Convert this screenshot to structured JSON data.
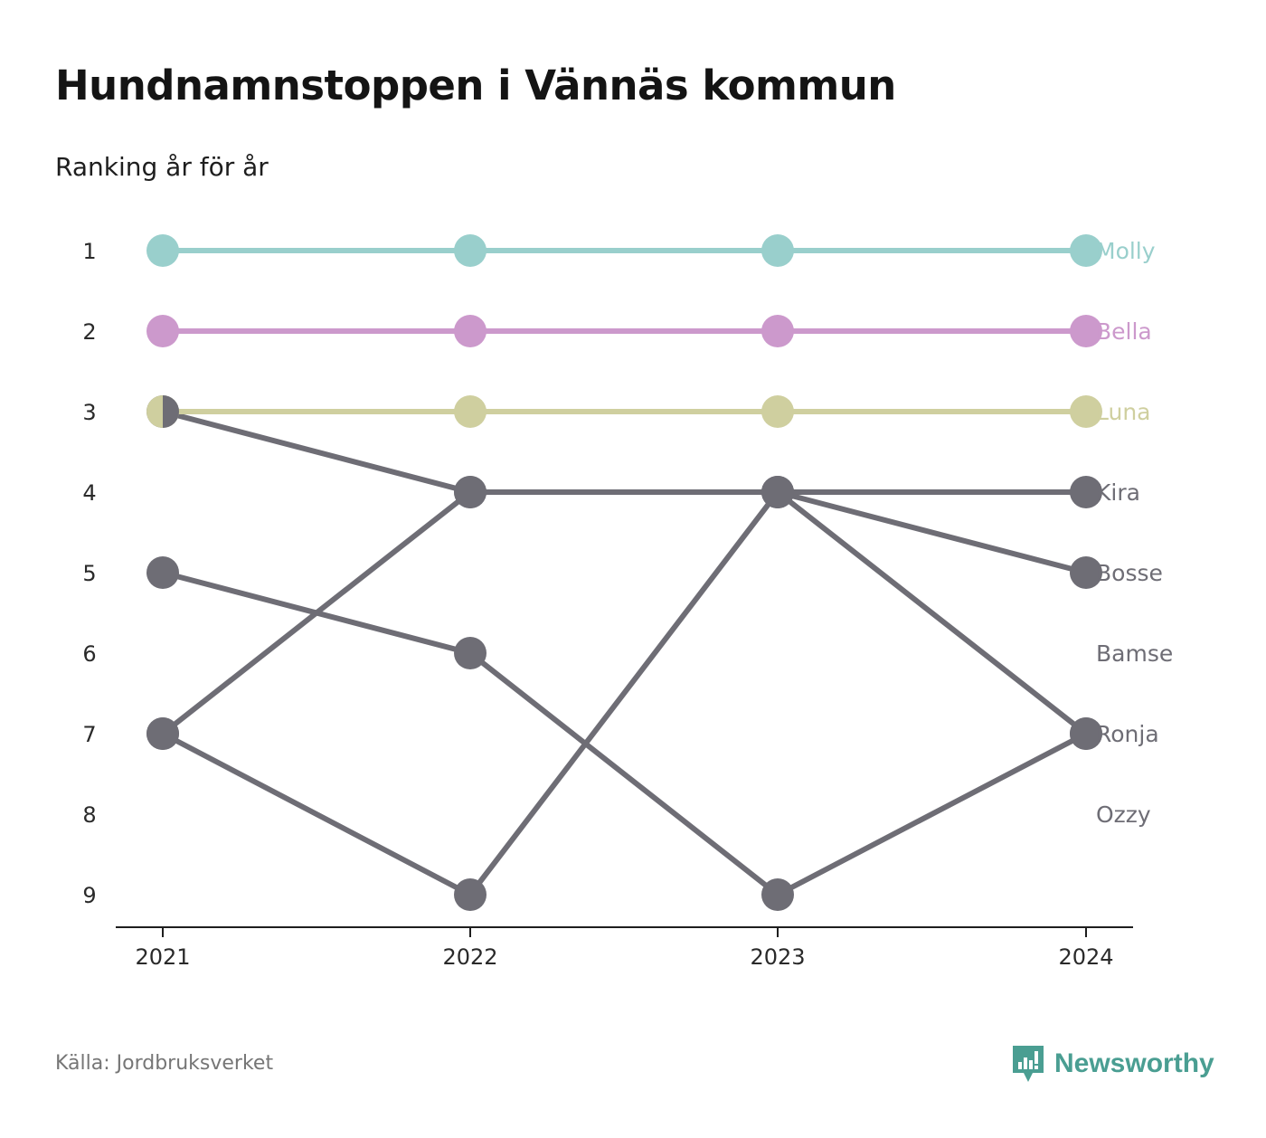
{
  "title": "Hundnamnstoppen i Vännäs kommun",
  "subtitle": "Ranking år för år",
  "source": "Källa: Jordbruksverket",
  "brand": {
    "name": "Newsworthy",
    "icon": "newsworthy-logo-icon",
    "color": "#4a9e92"
  },
  "chart_data": {
    "type": "line",
    "x": [
      "2021",
      "2022",
      "2023",
      "2024"
    ],
    "yticks": [
      "1",
      "2",
      "3",
      "4",
      "5",
      "6",
      "7",
      "8",
      "9"
    ],
    "ylim": [
      1,
      9
    ],
    "y_inverted": true,
    "grid": false,
    "series": [
      {
        "name": "Molly",
        "values": [
          1,
          1,
          1,
          1
        ],
        "color": "#99cfcc"
      },
      {
        "name": "Bella",
        "values": [
          2,
          2,
          2,
          2
        ],
        "color": "#cc99cc"
      },
      {
        "name": "Luna",
        "values": [
          3,
          3,
          3,
          3
        ],
        "color": "#cfcf9f"
      },
      {
        "name": "Kira",
        "values": [
          3,
          4,
          4,
          4
        ],
        "color": "#6e6d75"
      },
      {
        "name": "Bosse",
        "values": [
          7,
          9,
          4,
          5
        ],
        "color": "#6e6d75"
      },
      {
        "name": "Bamse",
        "values": [
          null,
          null,
          null,
          null
        ],
        "color": "#6e6d75"
      },
      {
        "name": "Ronja",
        "values": [
          7,
          4,
          4,
          7
        ],
        "color": "#6e6d75"
      },
      {
        "name": "Ozzy",
        "values": [
          5,
          6,
          9,
          7
        ],
        "color": "#6e6d75"
      }
    ],
    "series_label_ranks": [
      1,
      2,
      3,
      4,
      5,
      6,
      7,
      8
    ]
  }
}
